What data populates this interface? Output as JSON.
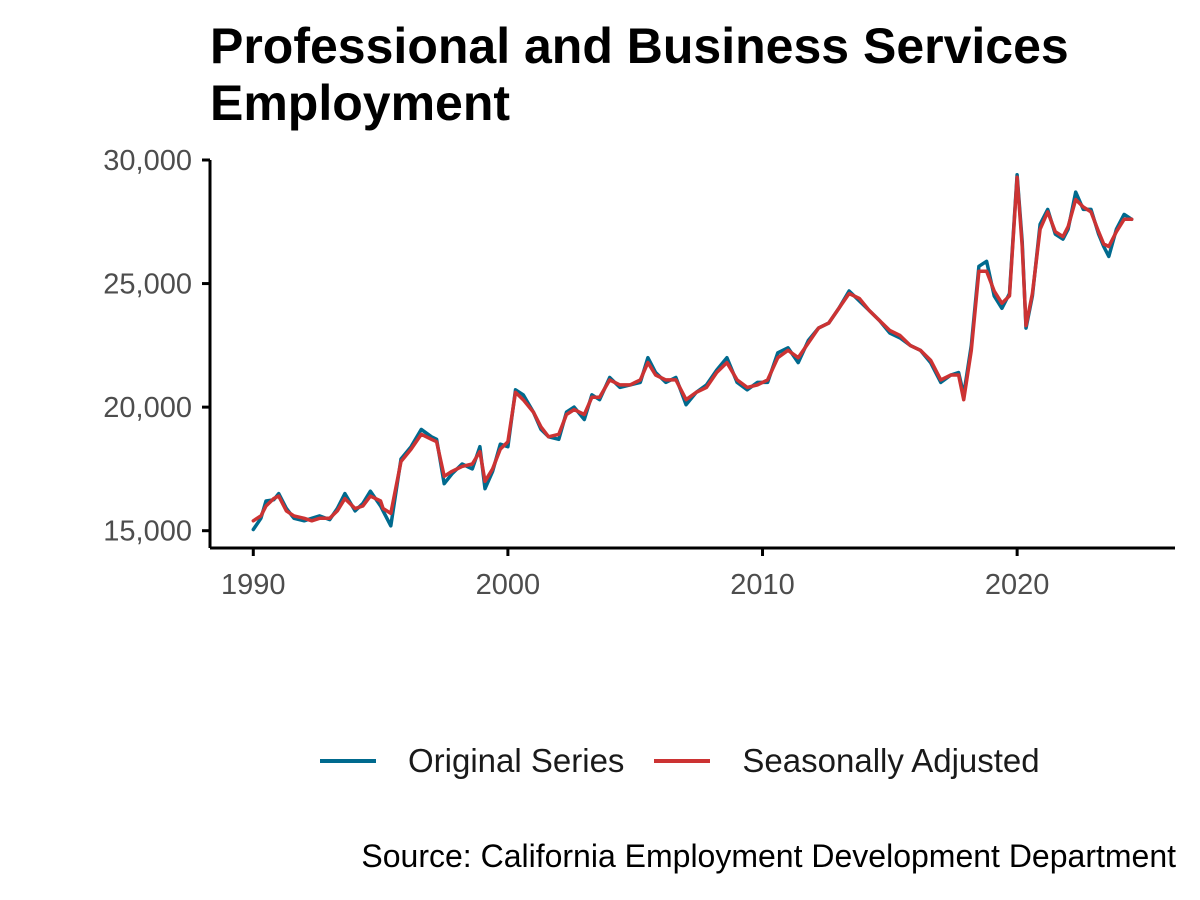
{
  "chart_data": {
    "type": "line",
    "title": "Professional and Business Services Employment",
    "xlabel": "",
    "ylabel": "",
    "xlim": [
      1988.3,
      2026.2
    ],
    "ylim": [
      14300,
      30000
    ],
    "x_ticks": [
      1990,
      2000,
      2010,
      2020
    ],
    "x_tick_labels": [
      "1990",
      "2000",
      "2010",
      "2020"
    ],
    "y_ticks": [
      15000,
      20000,
      25000,
      30000
    ],
    "y_tick_labels": [
      "15,000",
      "20,000",
      "25,000",
      "30,000"
    ],
    "grid": false,
    "legend_position": "bottom",
    "caption": "Source: California Employment Development Department",
    "series": [
      {
        "name": "Original Series",
        "color": "#006a8e",
        "x": [
          1990.0,
          1990.3,
          1990.5,
          1990.8,
          1991.0,
          1991.3,
          1991.6,
          1992.0,
          1992.3,
          1992.6,
          1993.0,
          1993.3,
          1993.6,
          1994.0,
          1994.3,
          1994.6,
          1995.0,
          1995.1,
          1995.4,
          1995.8,
          1996.2,
          1996.6,
          1997.0,
          1997.2,
          1997.5,
          1997.8,
          1998.2,
          1998.6,
          1998.9,
          1999.1,
          1999.4,
          1999.7,
          2000.0,
          2000.3,
          2000.6,
          2001.0,
          2001.3,
          2001.6,
          2002.0,
          2002.3,
          2002.6,
          2003.0,
          2003.3,
          2003.6,
          2004.0,
          2004.4,
          2004.8,
          2005.2,
          2005.5,
          2005.8,
          2006.2,
          2006.6,
          2007.0,
          2007.4,
          2007.8,
          2008.2,
          2008.6,
          2009.0,
          2009.4,
          2009.8,
          2010.2,
          2010.6,
          2011.0,
          2011.4,
          2011.8,
          2012.2,
          2012.6,
          2013.0,
          2013.4,
          2013.8,
          2014.2,
          2014.6,
          2015.0,
          2015.4,
          2015.8,
          2016.2,
          2016.6,
          2017.0,
          2017.4,
          2017.7,
          2017.9,
          2018.2,
          2018.5,
          2018.8,
          2019.1,
          2019.4,
          2019.7,
          2020.0,
          2020.2,
          2020.35,
          2020.6,
          2020.9,
          2021.2,
          2021.5,
          2021.8,
          2022.0,
          2022.3,
          2022.6,
          2022.9,
          2023.2,
          2023.4,
          2023.6,
          2023.9,
          2024.2,
          2024.5
        ],
        "values": [
          15050,
          15500,
          16200,
          16250,
          16500,
          15900,
          15500,
          15400,
          15500,
          15600,
          15450,
          15900,
          16500,
          15800,
          16100,
          16600,
          16000,
          15800,
          15200,
          17900,
          18400,
          19100,
          18800,
          18700,
          16900,
          17300,
          17700,
          17500,
          18400,
          16700,
          17400,
          18500,
          18400,
          20700,
          20500,
          19800,
          19100,
          18800,
          18700,
          19800,
          20000,
          19500,
          20500,
          20300,
          21200,
          20800,
          20900,
          21000,
          22000,
          21400,
          21000,
          21200,
          20100,
          20600,
          20900,
          21500,
          22000,
          21000,
          20700,
          21000,
          21000,
          22200,
          22400,
          21800,
          22700,
          23200,
          23400,
          24000,
          24700,
          24300,
          23900,
          23500,
          23000,
          22800,
          22500,
          22300,
          21800,
          21000,
          21300,
          21400,
          20500,
          22500,
          25700,
          25900,
          24500,
          24000,
          24600,
          29400,
          26700,
          23200,
          24500,
          27400,
          28000,
          27000,
          26800,
          27200,
          28700,
          28000,
          28000,
          27000,
          26500,
          26100,
          27200,
          27800,
          27600
        ]
      },
      {
        "name": "Seasonally Adjusted",
        "color": "#cc3333",
        "x": [
          1990.0,
          1990.3,
          1990.5,
          1990.8,
          1991.0,
          1991.3,
          1991.6,
          1992.0,
          1992.3,
          1992.6,
          1993.0,
          1993.3,
          1993.6,
          1994.0,
          1994.3,
          1994.6,
          1995.0,
          1995.1,
          1995.4,
          1995.8,
          1996.2,
          1996.6,
          1997.0,
          1997.2,
          1997.5,
          1997.8,
          1998.2,
          1998.6,
          1998.9,
          1999.1,
          1999.4,
          1999.7,
          2000.0,
          2000.3,
          2000.6,
          2001.0,
          2001.3,
          2001.6,
          2002.0,
          2002.3,
          2002.6,
          2003.0,
          2003.3,
          2003.6,
          2004.0,
          2004.4,
          2004.8,
          2005.2,
          2005.5,
          2005.8,
          2006.2,
          2006.6,
          2007.0,
          2007.4,
          2007.8,
          2008.2,
          2008.6,
          2009.0,
          2009.4,
          2009.8,
          2010.2,
          2010.6,
          2011.0,
          2011.4,
          2011.8,
          2012.2,
          2012.6,
          2013.0,
          2013.4,
          2013.8,
          2014.2,
          2014.6,
          2015.0,
          2015.4,
          2015.8,
          2016.2,
          2016.6,
          2017.0,
          2017.4,
          2017.7,
          2017.9,
          2018.2,
          2018.5,
          2018.8,
          2019.1,
          2019.4,
          2019.7,
          2020.0,
          2020.2,
          2020.35,
          2020.6,
          2020.9,
          2021.2,
          2021.5,
          2021.8,
          2022.0,
          2022.3,
          2022.6,
          2022.9,
          2023.2,
          2023.4,
          2023.6,
          2023.9,
          2024.2,
          2024.5
        ],
        "values": [
          15400,
          15600,
          16000,
          16300,
          16400,
          15800,
          15600,
          15500,
          15400,
          15500,
          15500,
          15800,
          16300,
          15900,
          16000,
          16400,
          16200,
          15900,
          15700,
          17800,
          18300,
          18900,
          18700,
          18600,
          17200,
          17400,
          17600,
          17700,
          18200,
          17000,
          17500,
          18300,
          18600,
          20600,
          20300,
          19800,
          19200,
          18800,
          18900,
          19700,
          19900,
          19700,
          20400,
          20400,
          21100,
          20900,
          20900,
          21100,
          21800,
          21300,
          21100,
          21100,
          20300,
          20600,
          20800,
          21400,
          21800,
          21100,
          20800,
          20900,
          21100,
          22000,
          22300,
          22000,
          22600,
          23200,
          23400,
          24000,
          24600,
          24400,
          23900,
          23500,
          23100,
          22900,
          22500,
          22300,
          21900,
          21100,
          21300,
          21300,
          20300,
          22300,
          25500,
          25500,
          24700,
          24200,
          24500,
          29300,
          26500,
          23300,
          24600,
          27200,
          27900,
          27100,
          26900,
          27300,
          28400,
          28100,
          27900,
          27100,
          26600,
          26500,
          27100,
          27600,
          27600
        ]
      }
    ]
  }
}
